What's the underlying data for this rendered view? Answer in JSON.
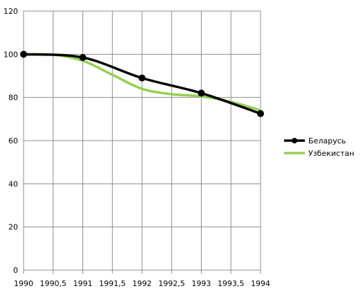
{
  "chart_data": {
    "type": "line",
    "x_ticks": [
      "1990",
      "1990,5",
      "1991",
      "1991,5",
      "1992",
      "1992,5",
      "1993",
      "1993,5",
      "1994"
    ],
    "y_ticks": [
      "0",
      "20",
      "40",
      "60",
      "80",
      "100",
      "120"
    ],
    "xlim": [
      1990,
      1994
    ],
    "ylim": [
      0,
      120
    ],
    "grid": true,
    "legend_position": "right",
    "series": [
      {
        "name": "Беларусь",
        "color": "#000000",
        "markers": true,
        "x": [
          1990,
          1991,
          1992,
          1993,
          1994
        ],
        "y": [
          100,
          98.5,
          89,
          82,
          72.5
        ]
      },
      {
        "name": "Узбекистан",
        "color": "#92d050",
        "markers": false,
        "x": [
          1990,
          1990.5,
          1991,
          1991.5,
          1992,
          1992.5,
          1993,
          1993.5,
          1994
        ],
        "y": [
          100,
          99.8,
          97,
          90.5,
          84,
          81.5,
          80.5,
          78,
          74
        ]
      }
    ]
  }
}
